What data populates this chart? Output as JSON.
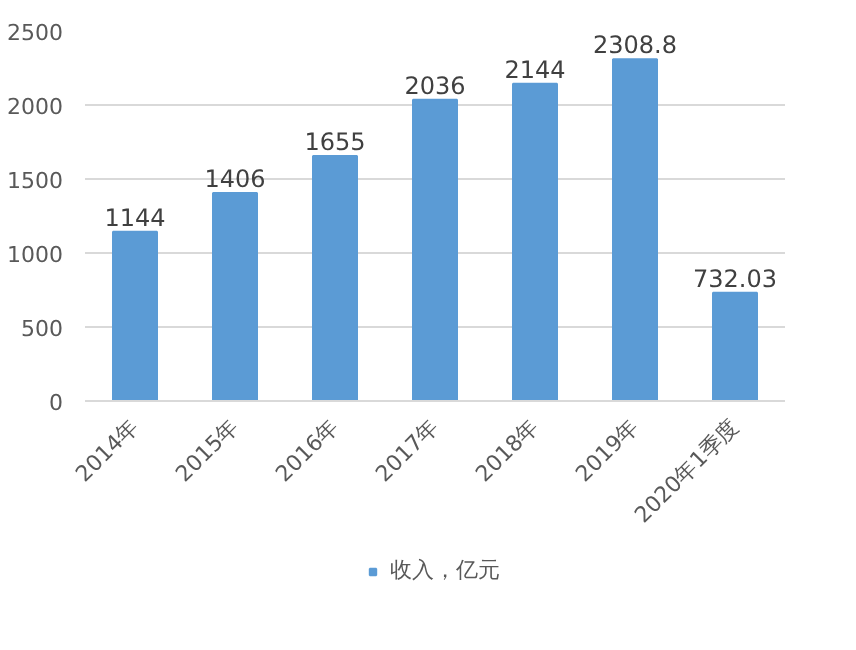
{
  "chart_data": {
    "type": "bar",
    "categories": [
      "2014年",
      "2015年",
      "2016年",
      "2017年",
      "2018年",
      "2019年",
      "2020年1季度"
    ],
    "series": [
      {
        "name": "收入，亿元",
        "color": "#5b9bd5",
        "values": [
          1144,
          1406,
          1655,
          2036,
          2144,
          2308.8,
          732.03
        ]
      }
    ],
    "ylim": [
      0,
      2500
    ],
    "yticks": [
      0,
      500,
      1000,
      1500,
      2000,
      2500
    ],
    "grid": "y",
    "legend": "bottom",
    "data_labels": true
  }
}
